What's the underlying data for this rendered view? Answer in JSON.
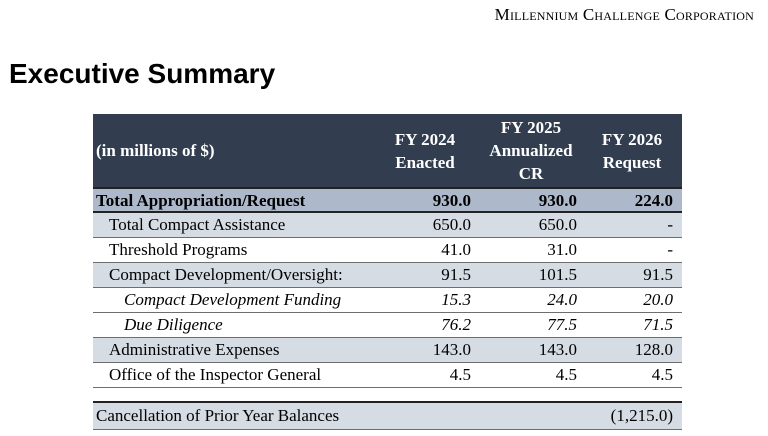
{
  "header": {
    "org_name": "Millennium Challenge Corporation"
  },
  "page_title": "Executive Summary",
  "table": {
    "unit_label": "(in millions of $)",
    "columns": [
      "FY 2024 Enacted",
      "FY 2025 Annualized CR",
      "FY 2026 Request"
    ],
    "rows": [
      {
        "label": "Total Appropriation/Request",
        "fy2024": "930.0",
        "fy2025": "930.0",
        "fy2026": "224.0"
      },
      {
        "label": "Total Compact Assistance",
        "fy2024": "650.0",
        "fy2025": "650.0",
        "fy2026": "-"
      },
      {
        "label": "Threshold Programs",
        "fy2024": "41.0",
        "fy2025": "31.0",
        "fy2026": "-"
      },
      {
        "label": "Compact Development/Oversight:",
        "fy2024": "91.5",
        "fy2025": "101.5",
        "fy2026": "91.5"
      },
      {
        "label": "Compact Development Funding",
        "fy2024": "15.3",
        "fy2025": "24.0",
        "fy2026": "20.0"
      },
      {
        "label": "Due Diligence",
        "fy2024": "76.2",
        "fy2025": "77.5",
        "fy2026": "71.5"
      },
      {
        "label": "Administrative Expenses",
        "fy2024": "143.0",
        "fy2025": "143.0",
        "fy2026": "128.0"
      },
      {
        "label": "Office of the Inspector General",
        "fy2024": "4.5",
        "fy2025": "4.5",
        "fy2026": "4.5"
      }
    ],
    "cancellation": {
      "label": "Cancellation of Prior Year Balances",
      "fy2026": "(1,215.0)"
    }
  }
}
